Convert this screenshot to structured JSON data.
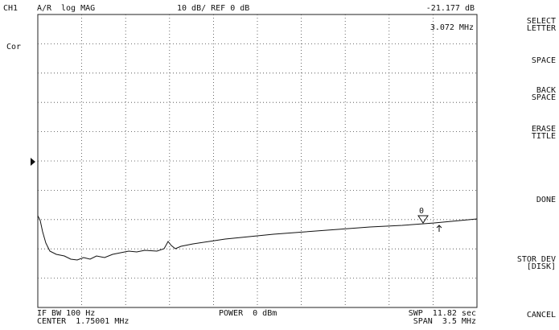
{
  "header": {
    "channel": "CH1",
    "measurement": "A/R",
    "format": "log MAG",
    "scale": "10 dB/ REF 0 dB",
    "marker_value": "-21.177 dB"
  },
  "marker": {
    "frequency": "3.072 MHz",
    "number": "0"
  },
  "status": "Cor",
  "footer": {
    "ifbw": "IF BW 100 Hz",
    "center": "CENTER  1.75001 MHz",
    "power": "POWER  0 dBm",
    "sweep": "SWP  11.82 sec",
    "span": "SPAN  3.5 MHz"
  },
  "softkeys": [
    [
      "SELECT",
      "LETTER"
    ],
    [
      "SPACE"
    ],
    [
      "BACK",
      "SPACE"
    ],
    [
      "ERASE",
      "TITLE"
    ],
    [
      "DONE"
    ],
    [
      "STOR DEV",
      "[DISK]"
    ],
    [
      "CANCEL"
    ]
  ]
}
